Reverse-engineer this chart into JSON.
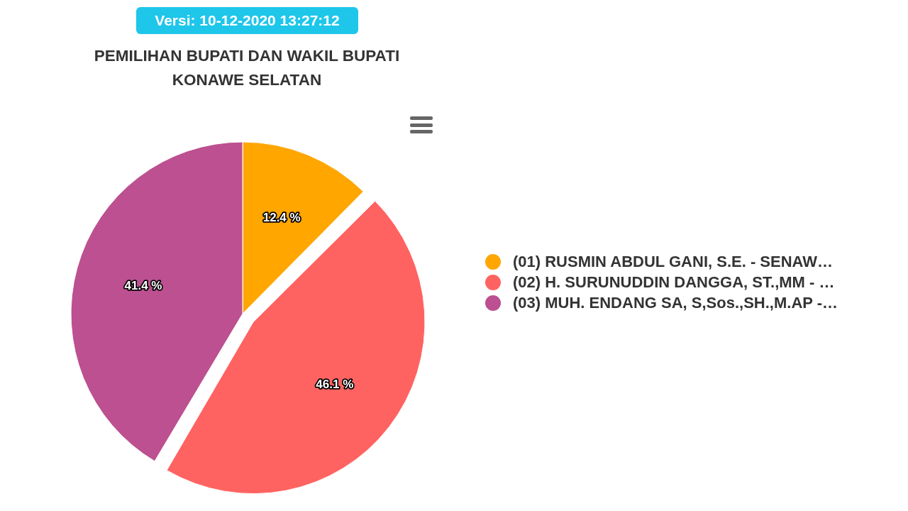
{
  "chart_data": {
    "type": "pie",
    "title": "PEMILIHAN BUPATI DAN WAKIL BUPATI KONAWE SELATAN",
    "annotations": [
      "Versi: 10-12-2020 13:27:12"
    ],
    "categories": [
      "(01) RUSMIN ABDUL GANI, S.E. - SENAW…",
      "(02) H. SURUNUDDIN DANGGA, ST.,MM - …",
      "(03) MUH. ENDANG SA, S,Sos.,SH.,M.AP -…"
    ],
    "values": [
      12.4,
      46.1,
      41.4
    ],
    "value_labels": [
      "12.4 %",
      "46.1 %",
      "41.4 %"
    ],
    "colors": [
      "#ffa600",
      "#ff6361",
      "#bc5090"
    ],
    "legend": "right"
  }
}
